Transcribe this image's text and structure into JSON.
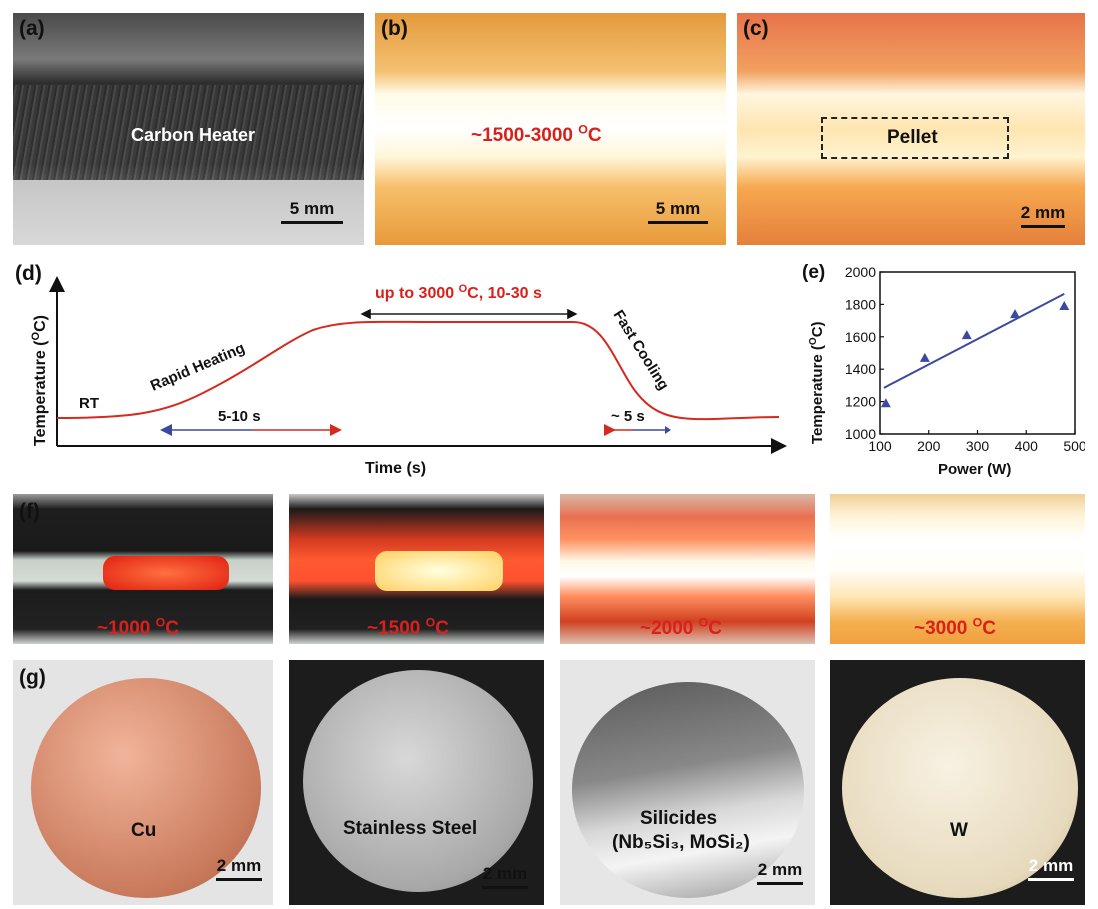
{
  "panels": {
    "a": {
      "label": "(a)",
      "caption": "Carbon Heater",
      "scale": "5 mm"
    },
    "b": {
      "label": "(b)",
      "caption_prefix": "~1500-3000 ",
      "caption_sup": "O",
      "caption_suffix": "C",
      "scale": "5 mm"
    },
    "c": {
      "label": "(c)",
      "caption": "Pellet",
      "scale": "2 mm"
    },
    "f": {
      "label": "(f)",
      "temps": [
        {
          "prefix": "~1000 ",
          "sup": "O",
          "suffix": "C"
        },
        {
          "prefix": "~1500 ",
          "sup": "O",
          "suffix": "C"
        },
        {
          "prefix": "~2000 ",
          "sup": "O",
          "suffix": "C"
        },
        {
          "prefix": "~3000 ",
          "sup": "O",
          "suffix": "C"
        }
      ]
    },
    "g": {
      "label": "(g)",
      "samples": [
        {
          "name": "Cu",
          "scale": "2 mm"
        },
        {
          "name": "Stainless Steel",
          "scale": "2 mm"
        },
        {
          "name_line1": "Silicides",
          "name_line2": "(Nb₅Si₃, MoSi₂)",
          "scale": "2 mm"
        },
        {
          "name": "W",
          "scale": "2 mm"
        }
      ]
    }
  },
  "colors": {
    "red_text": "#d9201c",
    "curve": "#d42a20",
    "blue": "#3b4aa0",
    "marker": "#3b4aa0"
  },
  "chart_data": [
    {
      "panel": "(d)",
      "type": "line",
      "schematic": true,
      "xlabel": "Time (s)",
      "ylabel_prefix": "Temperature (",
      "ylabel_sup": "O",
      "ylabel_suffix": "C)",
      "annotations": {
        "rt": "RT",
        "rapid_heating": "Rapid Heating",
        "fast_cooling": "Fast Cooling",
        "plateau_prefix": "up to 3000 ",
        "plateau_sup": "O",
        "plateau_suffix": "C, 10-30 s",
        "heating_time": "5-10 s",
        "cooling_time": "~ 5 s"
      }
    },
    {
      "panel": "(e)",
      "type": "scatter",
      "xlabel": "Power (W)",
      "ylabel_prefix": "Temperature (",
      "ylabel_sup": "O",
      "ylabel_suffix": "C)",
      "xlim": [
        100,
        500
      ],
      "ylim": [
        1000,
        2000
      ],
      "xticks": [
        100,
        200,
        300,
        400,
        500
      ],
      "yticks": [
        1000,
        1200,
        1400,
        1600,
        1800,
        2000
      ],
      "points": [
        {
          "x": 112,
          "y": 1190
        },
        {
          "x": 192,
          "y": 1470
        },
        {
          "x": 278,
          "y": 1610
        },
        {
          "x": 377,
          "y": 1740
        },
        {
          "x": 478,
          "y": 1790
        }
      ],
      "fit": {
        "x": [
          108,
          478
        ],
        "y": [
          1285,
          1865
        ]
      }
    }
  ]
}
